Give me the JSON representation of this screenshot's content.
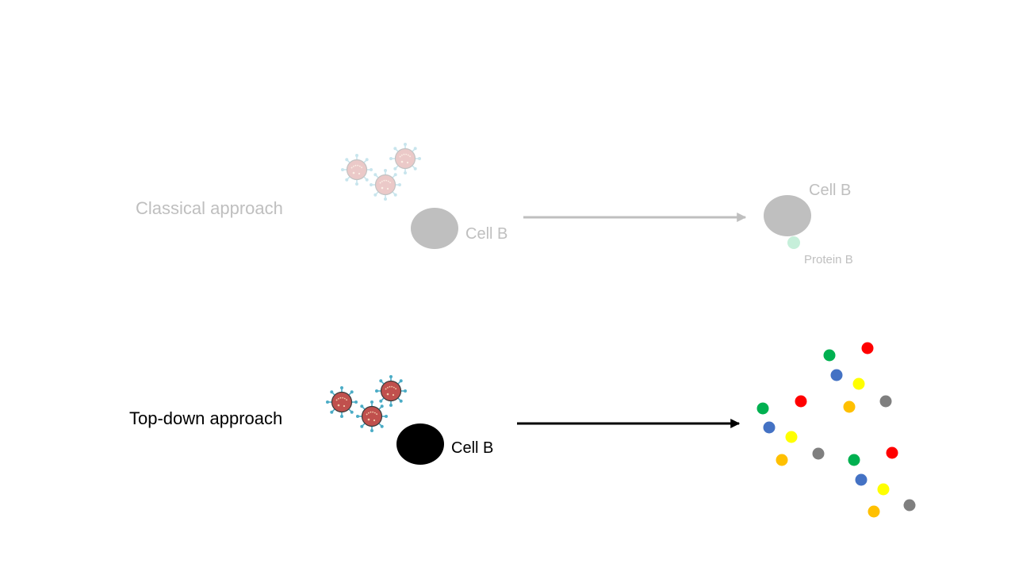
{
  "classical": {
    "label": "Classical approach",
    "cell_label": "Cell B",
    "result_cell_label": "Cell B",
    "protein_label": "Protein B"
  },
  "topdown": {
    "label": "Top-down approach",
    "cell_label": "Cell B"
  },
  "colors": {
    "faded_text": "#bfbfbf",
    "faded_cell": "#bfbfbf",
    "faded_protein": "#c6efda",
    "active_cell": "#000000",
    "virus_body": "#c0504d",
    "virus_spike": "#4bacc6",
    "protein_green": "#00b050",
    "protein_red": "#ff0000",
    "protein_blue": "#4472c4",
    "protein_yellow": "#ffff00",
    "protein_orange": "#ffc000",
    "protein_gray": "#7f7f7f"
  },
  "icons": {
    "virus": "virus-icon"
  }
}
